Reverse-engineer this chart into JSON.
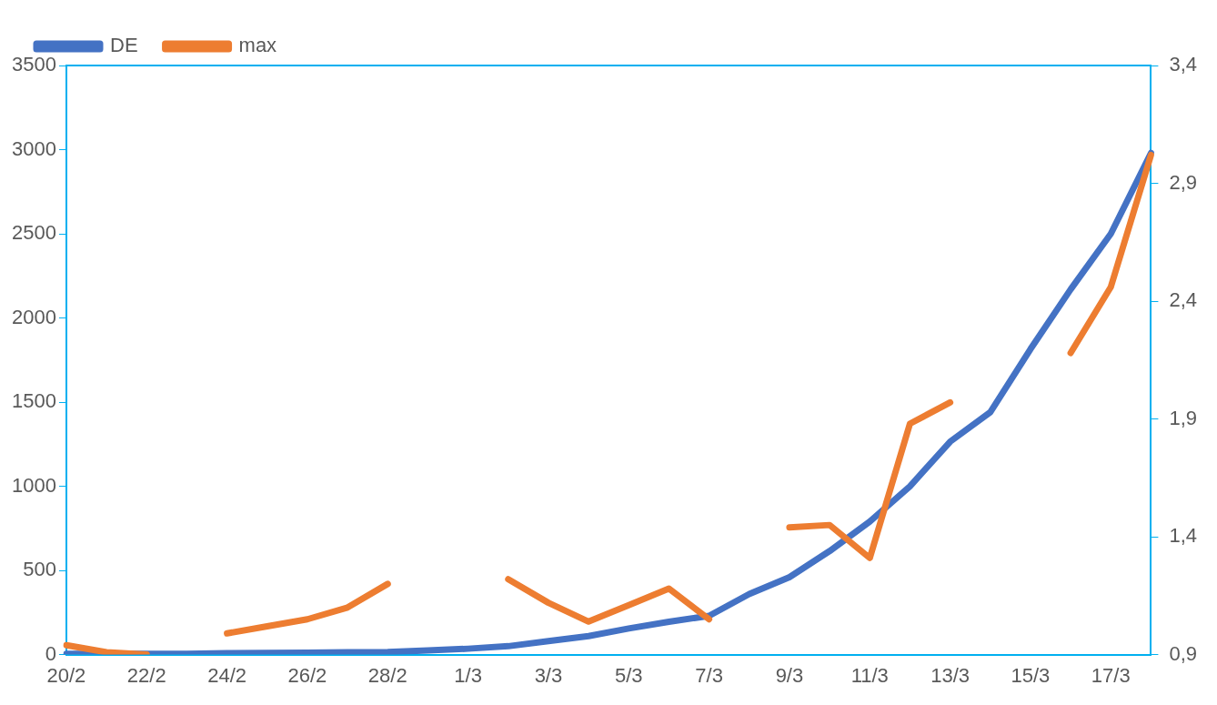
{
  "chart_data": {
    "type": "line",
    "categories": [
      "20/2",
      null,
      "22/2",
      null,
      "24/2",
      null,
      "26/2",
      null,
      "28/2",
      null,
      "1/3",
      null,
      "3/3",
      null,
      "5/3",
      null,
      "7/3",
      null,
      "9/3",
      null,
      "11/3",
      null,
      "13/3",
      null,
      "15/3",
      null,
      "17/3",
      null
    ],
    "series": [
      {
        "name": "DE",
        "color": "#4472c4",
        "values": [
          5,
          5,
          5,
          5,
          8,
          10,
          12,
          14,
          15,
          25,
          35,
          50,
          80,
          110,
          155,
          195,
          230,
          360,
          460,
          615,
          790,
          1000,
          1265,
          1440,
          1815,
          2170,
          2500,
          2980
        ]
      },
      {
        "name": "max",
        "color": "#ed7d31",
        "axis": "y2",
        "values": [
          0.94,
          0.91,
          0.9,
          null,
          0.99,
          1.02,
          1.05,
          1.1,
          1.2,
          null,
          null,
          1.22,
          1.12,
          1.04,
          1.11,
          1.18,
          1.05,
          null,
          1.44,
          1.45,
          1.31,
          1.88,
          1.97,
          null,
          null,
          2.18,
          2.46,
          3.02
        ]
      }
    ],
    "ylim": [
      0,
      3500
    ],
    "yticks": [
      0,
      500,
      1000,
      1500,
      2000,
      2500,
      3000,
      3500
    ],
    "y2lim": [
      0.9,
      3.4
    ],
    "y2ticks": [
      {
        "value": 0.9,
        "label": "0,9"
      },
      {
        "value": 1.4,
        "label": "1,4"
      },
      {
        "value": 1.9,
        "label": "1,9"
      },
      {
        "value": 2.4,
        "label": "2,4"
      },
      {
        "value": 2.9,
        "label": "2,9"
      },
      {
        "value": 3.4,
        "label": "3,4"
      }
    ],
    "grid": false,
    "legend": "top left",
    "marker": "none",
    "line_style": "solid"
  }
}
